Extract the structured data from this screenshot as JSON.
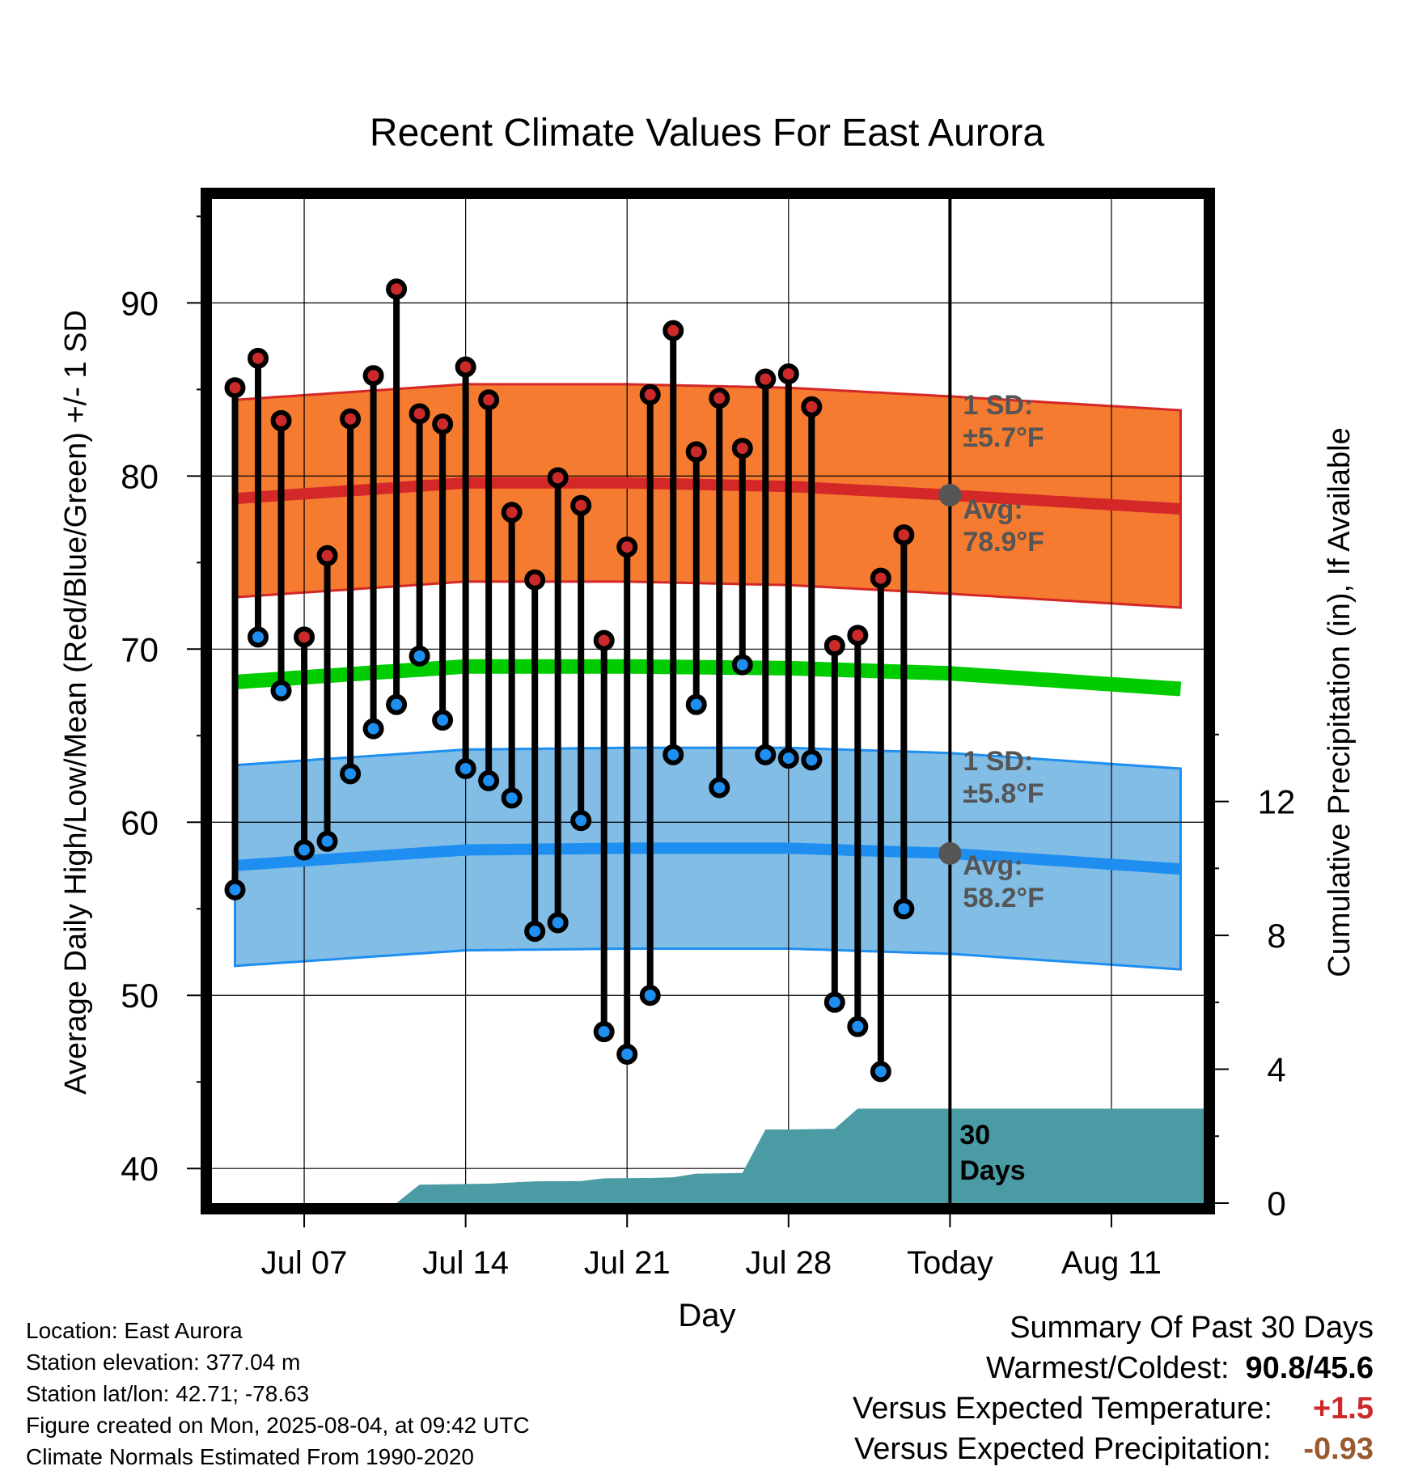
{
  "chart_data": {
    "type": "line",
    "title": "Recent Climate Values For East Aurora",
    "xlabel": "Day",
    "ylabel": "Average Daily High/Low/Mean (Red/Blue/Green) +/- 1 SD",
    "y2label": "Cumulative Precipitation (in), If Available",
    "ylim": [
      38,
      96
    ],
    "y2lim": [
      0,
      30
    ],
    "yticks": [
      40,
      50,
      60,
      70,
      80,
      90
    ],
    "y2ticks": [
      0,
      4,
      8,
      12
    ],
    "xlim": [
      "2025-07-03",
      "2025-08-15"
    ],
    "xticks": [
      {
        "date": "2025-07-07",
        "label": "Jul 07"
      },
      {
        "date": "2025-07-14",
        "label": "Jul 14"
      },
      {
        "date": "2025-07-21",
        "label": "Jul 21"
      },
      {
        "date": "2025-07-28",
        "label": "Jul 28"
      },
      {
        "date": "2025-08-04",
        "label": "Today"
      },
      {
        "date": "2025-08-11",
        "label": "Aug 11"
      }
    ],
    "grid": true,
    "today": "2025-08-04",
    "period_label": "30\nDays",
    "normals": {
      "dates": [
        "2025-07-04",
        "2025-07-14",
        "2025-07-21",
        "2025-07-28",
        "2025-08-04",
        "2025-08-14"
      ],
      "high_mean": [
        78.7,
        79.6,
        79.6,
        79.4,
        78.9,
        78.1
      ],
      "low_mean": [
        57.5,
        58.4,
        58.5,
        58.5,
        58.2,
        57.3
      ],
      "mean": [
        68.1,
        69.0,
        69.0,
        68.9,
        68.6,
        67.7
      ],
      "high_sd": 5.7,
      "low_sd": 5.8
    },
    "annotations": {
      "high_sd": {
        "line1": "1 SD:",
        "line2": "±5.7",
        "unit": "°F"
      },
      "high_avg": {
        "line1": "Avg:",
        "line2": "78.9",
        "unit": "°F"
      },
      "low_sd": {
        "line1": "1 SD:",
        "line2": "±5.8",
        "unit": "°F"
      },
      "low_avg": {
        "line1": "Avg:",
        "line2": "58.2",
        "unit": "°F"
      }
    },
    "series": [
      {
        "name": "High",
        "dates": [
          "2025-07-04",
          "2025-07-05",
          "2025-07-06",
          "2025-07-07",
          "2025-07-08",
          "2025-07-09",
          "2025-07-10",
          "2025-07-11",
          "2025-07-12",
          "2025-07-13",
          "2025-07-14",
          "2025-07-15",
          "2025-07-16",
          "2025-07-17",
          "2025-07-18",
          "2025-07-19",
          "2025-07-20",
          "2025-07-21",
          "2025-07-22",
          "2025-07-23",
          "2025-07-24",
          "2025-07-25",
          "2025-07-26",
          "2025-07-27",
          "2025-07-28",
          "2025-07-29",
          "2025-07-30",
          "2025-07-31",
          "2025-08-01",
          "2025-08-02",
          "2025-08-03"
        ],
        "values": [
          85.1,
          86.8,
          83.2,
          70.7,
          75.4,
          83.3,
          85.8,
          90.8,
          83.6,
          83.0,
          86.3,
          84.4,
          77.9,
          74.0,
          79.9,
          78.3,
          70.5,
          75.9,
          84.7,
          88.4,
          81.4,
          84.5,
          81.6,
          85.6,
          85.9,
          84.0,
          70.2,
          70.8,
          74.1,
          76.6,
          null
        ]
      },
      {
        "name": "Low",
        "dates": [
          "2025-07-04",
          "2025-07-05",
          "2025-07-06",
          "2025-07-07",
          "2025-07-08",
          "2025-07-09",
          "2025-07-10",
          "2025-07-11",
          "2025-07-12",
          "2025-07-13",
          "2025-07-14",
          "2025-07-15",
          "2025-07-16",
          "2025-07-17",
          "2025-07-18",
          "2025-07-19",
          "2025-07-20",
          "2025-07-21",
          "2025-07-22",
          "2025-07-23",
          "2025-07-24",
          "2025-07-25",
          "2025-07-26",
          "2025-07-27",
          "2025-07-28",
          "2025-07-29",
          "2025-07-30",
          "2025-07-31",
          "2025-08-01",
          "2025-08-02",
          "2025-08-03"
        ],
        "values": [
          56.1,
          70.7,
          67.6,
          58.4,
          58.9,
          62.8,
          65.4,
          66.8,
          69.6,
          65.9,
          63.1,
          62.4,
          61.4,
          53.7,
          54.2,
          60.1,
          47.9,
          46.6,
          50.0,
          63.9,
          66.8,
          62.0,
          69.1,
          63.9,
          63.7,
          63.6,
          49.6,
          48.2,
          45.6,
          55.0,
          null
        ]
      }
    ],
    "precipitation": {
      "dates": [
        "2025-07-04",
        "2025-07-09",
        "2025-07-10",
        "2025-07-11",
        "2025-07-12",
        "2025-07-15",
        "2025-07-17",
        "2025-07-19",
        "2025-07-20",
        "2025-07-22",
        "2025-07-23",
        "2025-07-24",
        "2025-07-26",
        "2025-07-27",
        "2025-07-28",
        "2025-07-30",
        "2025-07-31",
        "2025-08-01",
        "2025-08-04",
        "2025-08-15"
      ],
      "values": [
        0.0,
        0.0,
        0.0,
        0.0,
        0.55,
        0.58,
        0.65,
        0.66,
        0.74,
        0.75,
        0.77,
        0.88,
        0.9,
        2.2,
        2.2,
        2.22,
        2.82,
        2.82,
        2.82,
        2.82
      ]
    }
  },
  "footer": {
    "location": "Location: East Aurora",
    "elevation": "Station elevation: 377.04 m",
    "latlon": "Station lat/lon: 42.71; -78.63",
    "created": "Figure created on Mon, 2025-08-04, at 09:42 UTC",
    "normals": "Climate Normals Estimated From 1990-2020"
  },
  "summary": {
    "title": "Summary Of Past 30 Days",
    "warmest_label": "Warmest/Coldest:",
    "warmest_value": "90.8/45.6",
    "temp_label": "Versus Expected Temperature:",
    "temp_value": "+1.5",
    "precip_label": "Versus Expected Precipitation:",
    "precip_value": "-0.93"
  },
  "colors": {
    "high_band": "#f47b2f",
    "high_line": "#d42727",
    "low_band": "#82bde6",
    "low_line": "#1e8ff0",
    "mean_line": "#00cc00",
    "precip_fill": "#4a9ba3",
    "high_dot": "#cc2a2a",
    "low_dot": "#1e8ff0",
    "annotation": "#555555",
    "temp_anomaly": "#cc2a2a",
    "precip_anomaly": "#9a5a30"
  }
}
